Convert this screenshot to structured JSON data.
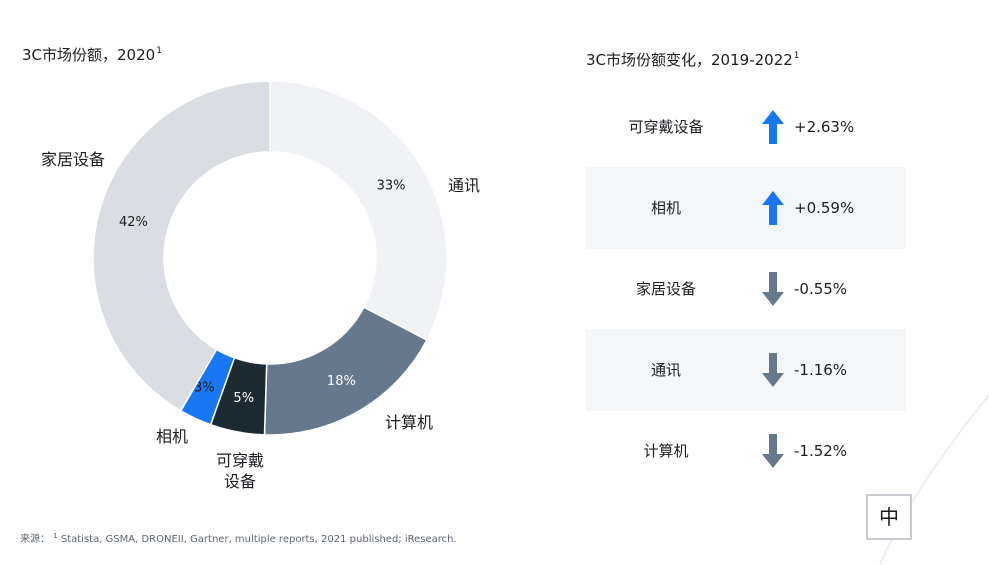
{
  "left_title": {
    "text": "3C市场份额，2020",
    "sup": "1"
  },
  "right_title": {
    "text": "3C市场份额变化，2019-2022",
    "sup": "1"
  },
  "chart_data": [
    {
      "type": "pie",
      "title": "3C市场份额，2020",
      "categories": [
        "通讯",
        "计算机",
        "可穿戴设备",
        "相机",
        "家居设备"
      ],
      "values": [
        33,
        18,
        5,
        3,
        42
      ],
      "value_labels": [
        "33%",
        "18%",
        "5%",
        "3%",
        "42%"
      ],
      "colors": [
        "#f0f2f5",
        "#65788c",
        "#1c2b33",
        "#1877f2",
        "#dadde1"
      ],
      "label_colors": [
        "#1c1e21",
        "#ffffff",
        "#ffffff",
        "#1c1e21",
        "#1c1e21"
      ],
      "donut": true,
      "legend": "none"
    },
    {
      "type": "table",
      "title": "3C市场份额变化，2019-2022",
      "columns": [
        "category",
        "direction",
        "change"
      ],
      "rows": [
        {
          "category": "可穿戴设备",
          "direction": "up",
          "change": "+2.63%",
          "value": 2.63,
          "color": "#1877f2"
        },
        {
          "category": "相机",
          "direction": "up",
          "change": "+0.59%",
          "value": 0.59,
          "color": "#1877f2"
        },
        {
          "category": "家居设备",
          "direction": "down",
          "change": "-0.55%",
          "value": -0.55,
          "color": "#65788c"
        },
        {
          "category": "通讯",
          "direction": "down",
          "change": "-1.16%",
          "value": -1.16,
          "color": "#65788c"
        },
        {
          "category": "计算机",
          "direction": "down",
          "change": "-1.52%",
          "value": -1.52,
          "color": "#65788c"
        }
      ]
    }
  ],
  "source": {
    "prefix": "来源：",
    "sup": "1",
    "text": "Statista, GSMA, DRONEII, Gartner, multiple reports, 2021 published; iResearch."
  },
  "lang_button": {
    "label": "中"
  }
}
